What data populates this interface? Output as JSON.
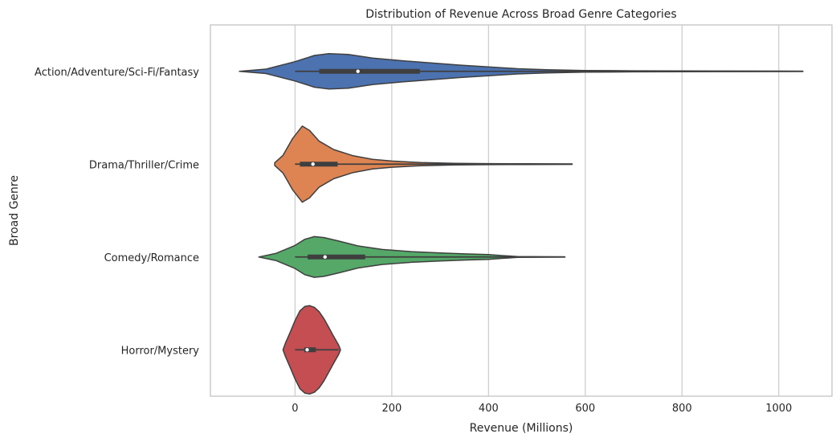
{
  "chart_data": {
    "type": "violin",
    "orientation": "horizontal",
    "title": "Distribution of Revenue Across Broad Genre Categories",
    "xlabel": "Revenue (Millions)",
    "ylabel": "Broad Genre",
    "xlim": [
      -175,
      1110
    ],
    "xticks": [
      0,
      200,
      400,
      600,
      800,
      1000
    ],
    "grid": true,
    "series": [
      {
        "name": "Action/Adventure/Sci-Fi/Fantasy",
        "color": "#4c72b0",
        "whisker": [
          0,
          1050
        ],
        "q1": 50,
        "median": 130,
        "q3": 258,
        "density": [
          [
            -115,
            0.0
          ],
          [
            -60,
            0.05
          ],
          [
            0,
            0.22
          ],
          [
            40,
            0.36
          ],
          [
            70,
            0.4
          ],
          [
            110,
            0.38
          ],
          [
            160,
            0.3
          ],
          [
            220,
            0.24
          ],
          [
            280,
            0.19
          ],
          [
            340,
            0.14
          ],
          [
            400,
            0.1
          ],
          [
            460,
            0.06
          ],
          [
            520,
            0.035
          ],
          [
            600,
            0.02
          ],
          [
            700,
            0.012
          ],
          [
            800,
            0.008
          ],
          [
            900,
            0.006
          ],
          [
            1000,
            0.004
          ],
          [
            1050,
            0.003
          ]
        ]
      },
      {
        "name": "Drama/Thriller/Crime",
        "color": "#dd8452",
        "whisker": [
          0,
          573
        ],
        "q1": 10,
        "median": 37,
        "q3": 88,
        "density": [
          [
            -42,
            0.03
          ],
          [
            -25,
            0.2
          ],
          [
            -5,
            0.58
          ],
          [
            15,
            0.86
          ],
          [
            30,
            0.76
          ],
          [
            50,
            0.52
          ],
          [
            80,
            0.33
          ],
          [
            120,
            0.19
          ],
          [
            160,
            0.11
          ],
          [
            200,
            0.07
          ],
          [
            260,
            0.035
          ],
          [
            330,
            0.02
          ],
          [
            400,
            0.012
          ],
          [
            480,
            0.008
          ],
          [
            573,
            0.005
          ]
        ]
      },
      {
        "name": "Comedy/Romance",
        "color": "#55a868",
        "whisker": [
          0,
          558
        ],
        "q1": 26,
        "median": 62,
        "q3": 145,
        "density": [
          [
            -75,
            0.0
          ],
          [
            -40,
            0.08
          ],
          [
            0,
            0.26
          ],
          [
            20,
            0.4
          ],
          [
            40,
            0.46
          ],
          [
            60,
            0.44
          ],
          [
            90,
            0.36
          ],
          [
            130,
            0.25
          ],
          [
            180,
            0.17
          ],
          [
            240,
            0.12
          ],
          [
            300,
            0.09
          ],
          [
            350,
            0.07
          ],
          [
            400,
            0.055
          ],
          [
            430,
            0.03
          ],
          [
            460,
            0.01
          ],
          [
            520,
            0.005
          ],
          [
            558,
            0.003
          ]
        ]
      },
      {
        "name": "Horror/Mystery",
        "color": "#c44e52",
        "whisker": [
          0,
          90
        ],
        "q1": 19,
        "median": 25,
        "q3": 43,
        "density": [
          [
            -25,
            0.0
          ],
          [
            -20,
            0.15
          ],
          [
            -10,
            0.4
          ],
          [
            0,
            0.66
          ],
          [
            10,
            0.88
          ],
          [
            20,
            0.98
          ],
          [
            30,
            1.0
          ],
          [
            40,
            0.96
          ],
          [
            50,
            0.86
          ],
          [
            60,
            0.7
          ],
          [
            70,
            0.5
          ],
          [
            80,
            0.3
          ],
          [
            90,
            0.11
          ],
          [
            94,
            0.0
          ]
        ]
      }
    ]
  }
}
